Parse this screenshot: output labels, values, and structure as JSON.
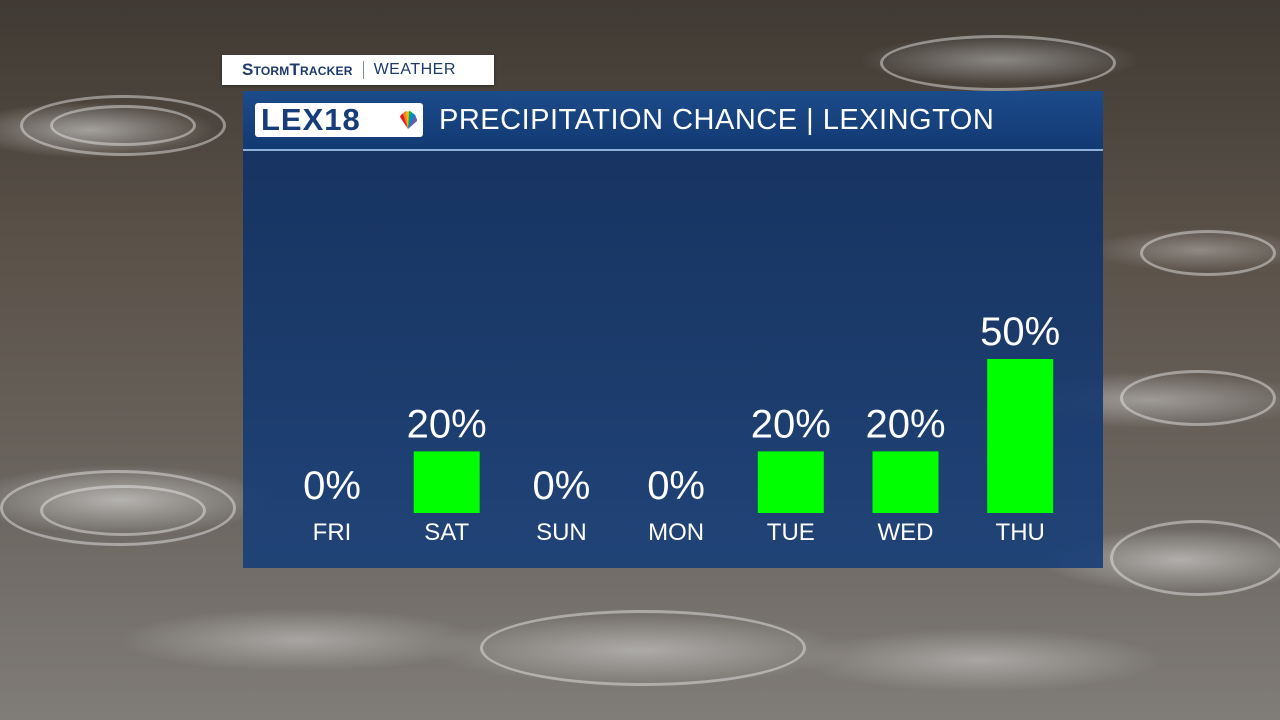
{
  "tag": {
    "brand": "StormTracker",
    "sub": "WEATHER"
  },
  "header": {
    "logo_text": "LEX18",
    "title": "PRECIPITATION CHANCE | LEXINGTON"
  },
  "colors": {
    "bar": "#00ff00",
    "header_bg": "#1c4b8a",
    "brand_text": "#1c3a6b"
  },
  "icons": {
    "logo_peacock": "nbc-peacock-icon"
  },
  "chart_data": {
    "type": "bar",
    "categories": [
      "FRI",
      "SAT",
      "SUN",
      "MON",
      "TUE",
      "WED",
      "THU"
    ],
    "values": [
      0,
      20,
      0,
      0,
      20,
      20,
      50
    ],
    "value_labels": [
      "0%",
      "20%",
      "0%",
      "0%",
      "20%",
      "20%",
      "50%"
    ],
    "title": "PRECIPITATION CHANCE | LEXINGTON",
    "unit": "%",
    "ylim": [
      0,
      100
    ],
    "grid": false,
    "legend": "none"
  }
}
